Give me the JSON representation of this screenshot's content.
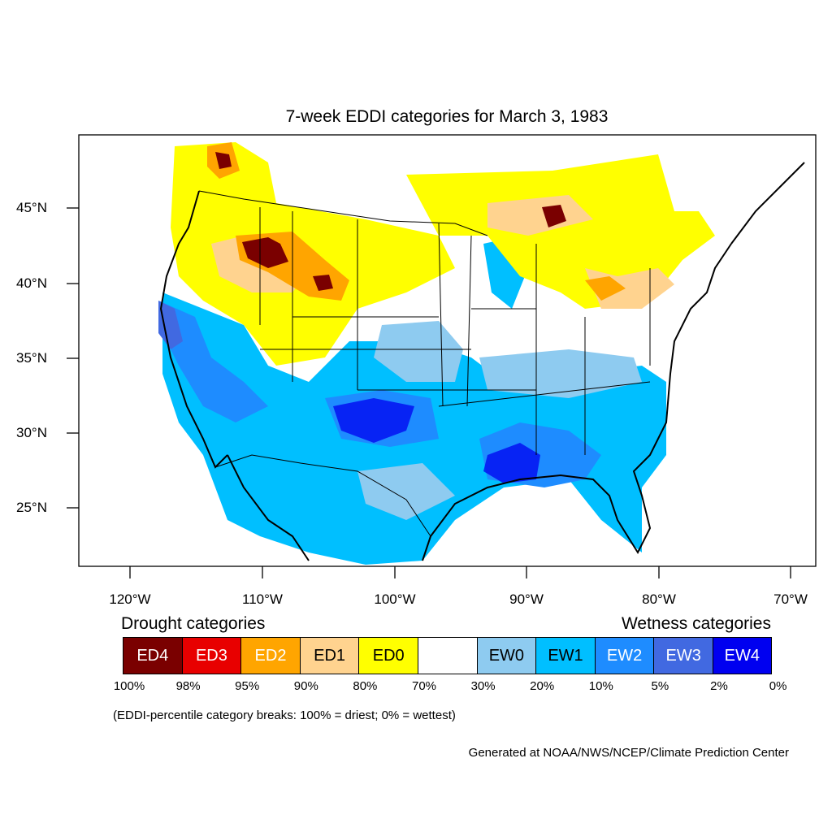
{
  "title": "7-week EDDI categories for March 3, 1983",
  "lat_labels": [
    "45°N",
    "40°N",
    "35°N",
    "30°N",
    "25°N"
  ],
  "lon_labels": [
    "120°W",
    "110°W",
    "100°W",
    "90°W",
    "80°W",
    "70°W"
  ],
  "legend": {
    "drought_heading": "Drought categories",
    "wetness_heading": "Wetness categories",
    "categories": [
      {
        "label": "ED4",
        "color": "#7a0000",
        "text_color": "#ffffff"
      },
      {
        "label": "ED3",
        "color": "#e80000",
        "text_color": "#ffffff"
      },
      {
        "label": "ED2",
        "color": "#ffa500",
        "text_color": "#ffffff"
      },
      {
        "label": "ED1",
        "color": "#ffd38f",
        "text_color": "#000000"
      },
      {
        "label": "ED0",
        "color": "#ffff00",
        "text_color": "#000000"
      },
      {
        "label": "",
        "color": "#ffffff",
        "text_color": "#000000"
      },
      {
        "label": "EW0",
        "color": "#8ecbf0",
        "text_color": "#000000"
      },
      {
        "label": "EW1",
        "color": "#00bfff",
        "text_color": "#000000"
      },
      {
        "label": "EW2",
        "color": "#1e8cff",
        "text_color": "#ffffff"
      },
      {
        "label": "EW3",
        "color": "#4169e1",
        "text_color": "#ffffff"
      },
      {
        "label": "EW4",
        "color": "#0000f0",
        "text_color": "#ffffff"
      }
    ],
    "breaks": [
      "100%",
      "98%",
      "95%",
      "90%",
      "80%",
      "70%",
      "30%",
      "20%",
      "10%",
      "5%",
      "2%",
      "0%"
    ]
  },
  "note": "(EDDI-percentile category breaks: 100% = driest; 0% = wettest)",
  "credit": "Generated at NOAA/NWS/NCEP/Climate Prediction Center"
}
